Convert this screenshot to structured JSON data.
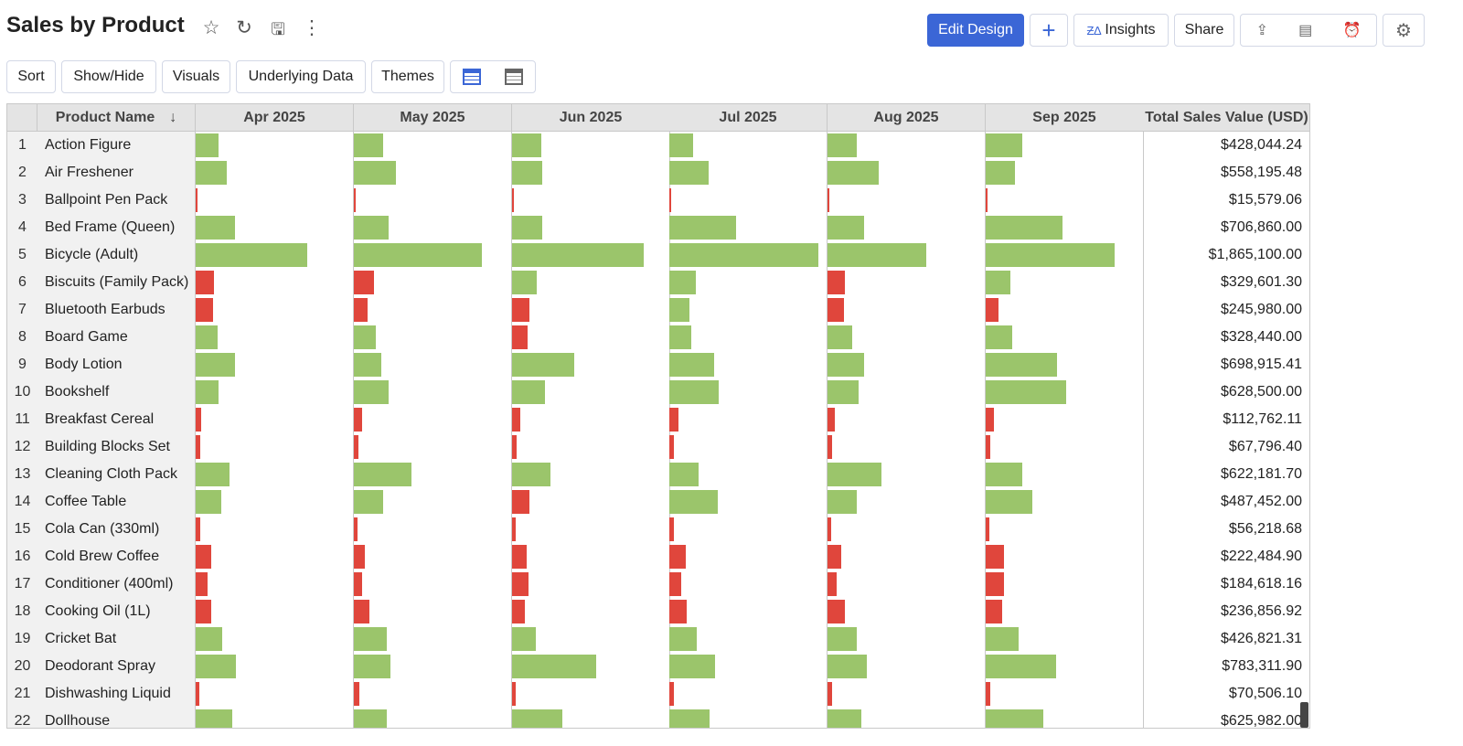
{
  "header": {
    "title": "Sales by Product",
    "icons": [
      "star-icon",
      "refresh-icon",
      "save-icon",
      "more-icon"
    ],
    "edit_design": "Edit Design",
    "add": "+",
    "insights": "Insights",
    "share": "Share"
  },
  "toolbar": {
    "sort": "Sort",
    "show_hide": "Show/Hide",
    "visuals": "Visuals",
    "underlying": "Underlying Data",
    "themes": "Themes"
  },
  "colors": {
    "positive": "#9bc56b",
    "negative": "#e0463c",
    "accent": "#3b66d6"
  },
  "table": {
    "columns": [
      "Product Name",
      "Apr 2025",
      "May 2025",
      "Jun 2025",
      "Jul 2025",
      "Aug 2025",
      "Sep 2025",
      "Total Sales Value (USD)"
    ],
    "rows": [
      {
        "n": "1",
        "name": "Action Figure",
        "total": "$428,044.24",
        "bars": [
          [
            25,
            1
          ],
          [
            32,
            1
          ],
          [
            32,
            1
          ],
          [
            26,
            1
          ],
          [
            32,
            1
          ],
          [
            40,
            1
          ]
        ]
      },
      {
        "n": "2",
        "name": "Air Freshener",
        "total": "$558,195.48",
        "bars": [
          [
            34,
            1
          ],
          [
            46,
            1
          ],
          [
            33,
            1
          ],
          [
            43,
            1
          ],
          [
            56,
            1
          ],
          [
            32,
            1
          ]
        ]
      },
      {
        "n": "3",
        "name": "Ballpoint Pen Pack",
        "total": "$15,579.06",
        "bars": [
          [
            2,
            0
          ],
          [
            2,
            0
          ],
          [
            2,
            0
          ],
          [
            2,
            0
          ],
          [
            2,
            0
          ],
          [
            2,
            0
          ]
        ]
      },
      {
        "n": "4",
        "name": "Bed Frame (Queen)",
        "total": "$706,860.00",
        "bars": [
          [
            43,
            1
          ],
          [
            38,
            1
          ],
          [
            33,
            1
          ],
          [
            73,
            1
          ],
          [
            40,
            1
          ],
          [
            84,
            1
          ]
        ]
      },
      {
        "n": "5",
        "name": "Bicycle (Adult)",
        "total": "$1,865,100.00",
        "bars": [
          [
            122,
            1
          ],
          [
            140,
            1
          ],
          [
            144,
            1
          ],
          [
            163,
            1
          ],
          [
            108,
            1
          ],
          [
            141,
            1
          ]
        ]
      },
      {
        "n": "6",
        "name": "Biscuits (Family Pack)",
        "total": "$329,601.30",
        "bars": [
          [
            20,
            0
          ],
          [
            22,
            0
          ],
          [
            27,
            1
          ],
          [
            29,
            1
          ],
          [
            19,
            0
          ],
          [
            27,
            1
          ]
        ]
      },
      {
        "n": "7",
        "name": "Bluetooth Earbuds",
        "total": "$245,980.00",
        "bars": [
          [
            19,
            0
          ],
          [
            15,
            0
          ],
          [
            19,
            0
          ],
          [
            22,
            1
          ],
          [
            18,
            0
          ],
          [
            14,
            0
          ]
        ]
      },
      {
        "n": "8",
        "name": "Board Game",
        "total": "$328,440.00",
        "bars": [
          [
            24,
            1
          ],
          [
            24,
            1
          ],
          [
            17,
            0
          ],
          [
            24,
            1
          ],
          [
            27,
            1
          ],
          [
            29,
            1
          ]
        ]
      },
      {
        "n": "9",
        "name": "Body Lotion",
        "total": "$698,915.41",
        "bars": [
          [
            43,
            1
          ],
          [
            30,
            1
          ],
          [
            68,
            1
          ],
          [
            49,
            1
          ],
          [
            40,
            1
          ],
          [
            78,
            1
          ]
        ]
      },
      {
        "n": "10",
        "name": "Bookshelf",
        "total": "$628,500.00",
        "bars": [
          [
            25,
            1
          ],
          [
            38,
            1
          ],
          [
            36,
            1
          ],
          [
            54,
            1
          ],
          [
            34,
            1
          ],
          [
            88,
            1
          ]
        ]
      },
      {
        "n": "11",
        "name": "Breakfast Cereal",
        "total": "$112,762.11",
        "bars": [
          [
            6,
            0
          ],
          [
            9,
            0
          ],
          [
            9,
            0
          ],
          [
            10,
            0
          ],
          [
            8,
            0
          ],
          [
            9,
            0
          ]
        ]
      },
      {
        "n": "12",
        "name": "Building Blocks Set",
        "total": "$67,796.40",
        "bars": [
          [
            5,
            0
          ],
          [
            5,
            0
          ],
          [
            5,
            0
          ],
          [
            5,
            0
          ],
          [
            5,
            0
          ],
          [
            5,
            0
          ]
        ]
      },
      {
        "n": "13",
        "name": "Cleaning Cloth Pack",
        "total": "$622,181.70",
        "bars": [
          [
            37,
            1
          ],
          [
            63,
            1
          ],
          [
            42,
            1
          ],
          [
            32,
            1
          ],
          [
            59,
            1
          ],
          [
            40,
            1
          ]
        ]
      },
      {
        "n": "14",
        "name": "Coffee Table",
        "total": "$487,452.00",
        "bars": [
          [
            28,
            1
          ],
          [
            32,
            1
          ],
          [
            19,
            0
          ],
          [
            53,
            1
          ],
          [
            32,
            1
          ],
          [
            51,
            1
          ]
        ]
      },
      {
        "n": "15",
        "name": "Cola Can (330ml)",
        "total": "$56,218.68",
        "bars": [
          [
            5,
            0
          ],
          [
            4,
            0
          ],
          [
            4,
            0
          ],
          [
            5,
            0
          ],
          [
            4,
            0
          ],
          [
            4,
            0
          ]
        ]
      },
      {
        "n": "16",
        "name": "Cold Brew Coffee",
        "total": "$222,484.90",
        "bars": [
          [
            17,
            0
          ],
          [
            12,
            0
          ],
          [
            16,
            0
          ],
          [
            18,
            0
          ],
          [
            15,
            0
          ],
          [
            20,
            0
          ]
        ]
      },
      {
        "n": "17",
        "name": "Conditioner (400ml)",
        "total": "$184,618.16",
        "bars": [
          [
            13,
            0
          ],
          [
            9,
            0
          ],
          [
            18,
            0
          ],
          [
            13,
            0
          ],
          [
            10,
            0
          ],
          [
            20,
            0
          ]
        ]
      },
      {
        "n": "18",
        "name": "Cooking Oil (1L)",
        "total": "$236,856.92",
        "bars": [
          [
            17,
            0
          ],
          [
            17,
            0
          ],
          [
            14,
            0
          ],
          [
            19,
            0
          ],
          [
            19,
            0
          ],
          [
            18,
            0
          ]
        ]
      },
      {
        "n": "19",
        "name": "Cricket Bat",
        "total": "$426,821.31",
        "bars": [
          [
            29,
            1
          ],
          [
            36,
            1
          ],
          [
            26,
            1
          ],
          [
            30,
            1
          ],
          [
            32,
            1
          ],
          [
            36,
            1
          ]
        ]
      },
      {
        "n": "20",
        "name": "Deodorant Spray",
        "total": "$783,311.90",
        "bars": [
          [
            44,
            1
          ],
          [
            40,
            1
          ],
          [
            92,
            1
          ],
          [
            50,
            1
          ],
          [
            43,
            1
          ],
          [
            77,
            1
          ]
        ]
      },
      {
        "n": "21",
        "name": "Dishwashing Liquid",
        "total": "$70,506.10",
        "bars": [
          [
            4,
            0
          ],
          [
            6,
            0
          ],
          [
            4,
            0
          ],
          [
            5,
            0
          ],
          [
            5,
            0
          ],
          [
            5,
            0
          ]
        ]
      },
      {
        "n": "22",
        "name": "Dollhouse",
        "total": "$625,982.00",
        "bars": [
          [
            40,
            1
          ],
          [
            36,
            1
          ],
          [
            55,
            1
          ],
          [
            44,
            1
          ],
          [
            37,
            1
          ],
          [
            63,
            1
          ]
        ]
      }
    ]
  }
}
